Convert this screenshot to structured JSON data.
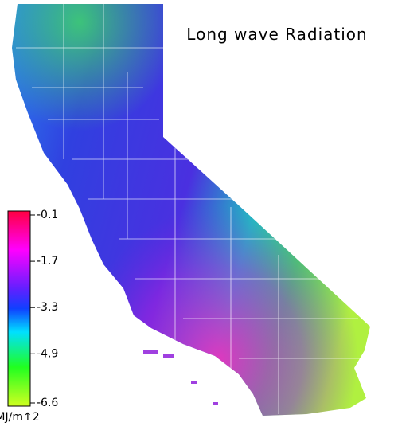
{
  "title": "Long wave Radiation",
  "colorbar": {
    "lim": [
      -6.6,
      -0.1
    ],
    "ticks": [
      -0.1,
      -1.7,
      -3.3,
      -4.9,
      -6.6
    ],
    "unit": "MJ/m↑2"
  }
}
